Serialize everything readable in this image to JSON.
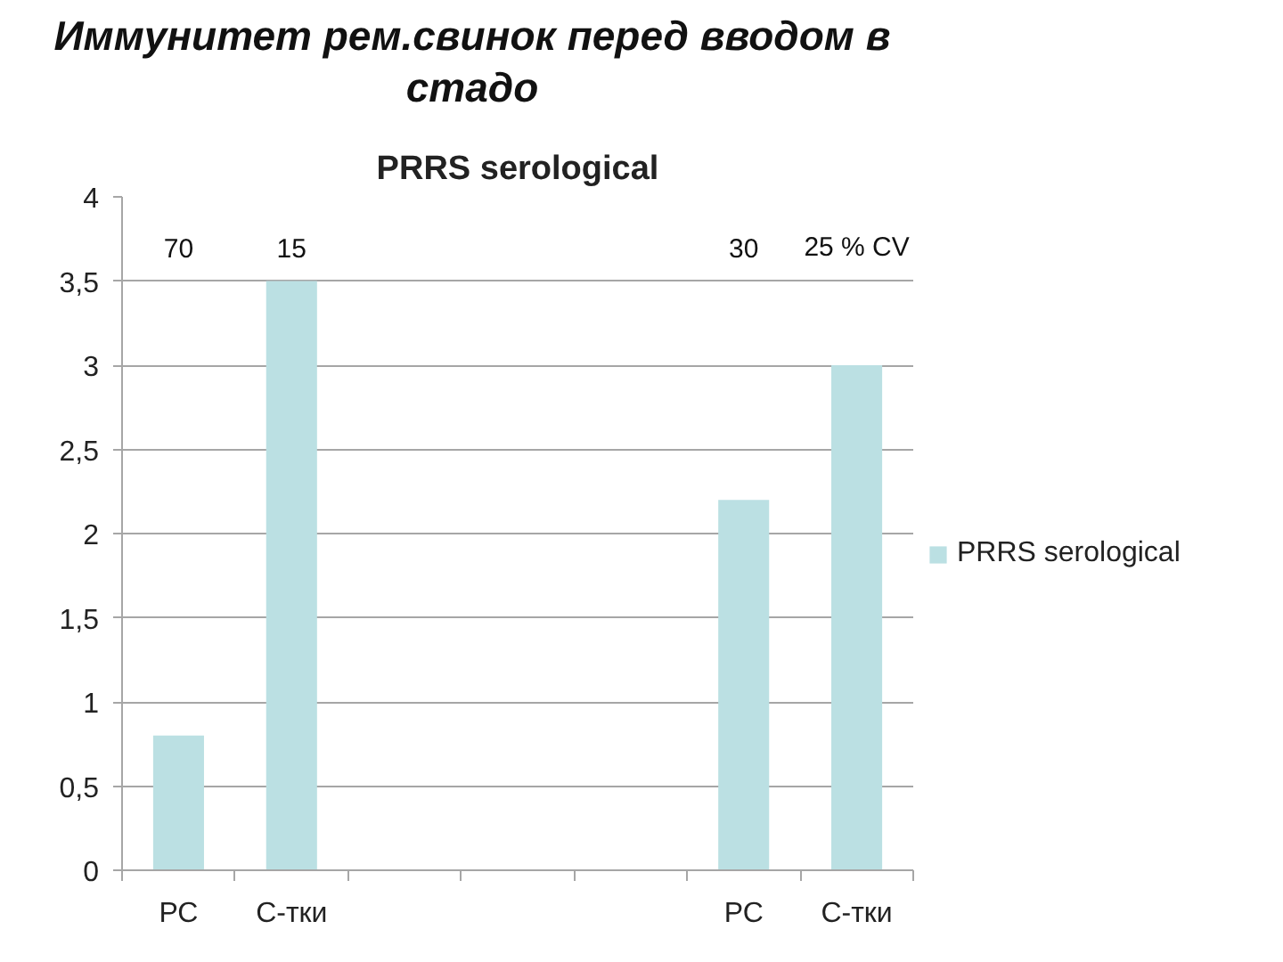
{
  "chart_data": {
    "type": "bar",
    "title": "Иммунитет рем.свинок перед вводом в стадо",
    "subtitle": "PRRS serological",
    "categories": [
      "РС",
      "С-тки",
      null,
      null,
      null,
      "РС",
      "С-тки"
    ],
    "series": [
      {
        "name": "PRRS serological",
        "color": "#bbe0e3",
        "values": [
          0.8,
          3.5,
          null,
          null,
          null,
          2.2,
          3
        ]
      }
    ],
    "ylim": [
      0,
      4
    ],
    "yticks": [
      0,
      {
        "value": 0.5,
        "label": "0,5"
      },
      1,
      {
        "value": 1.5,
        "label": "1,5"
      },
      2,
      {
        "value": 2.5,
        "label": "2,5"
      },
      3,
      {
        "value": 3.5,
        "label": "3,5"
      },
      4
    ],
    "grid": "y",
    "legend": "right",
    "annotations": [
      "70",
      "15",
      "30",
      "25 % CV"
    ]
  }
}
